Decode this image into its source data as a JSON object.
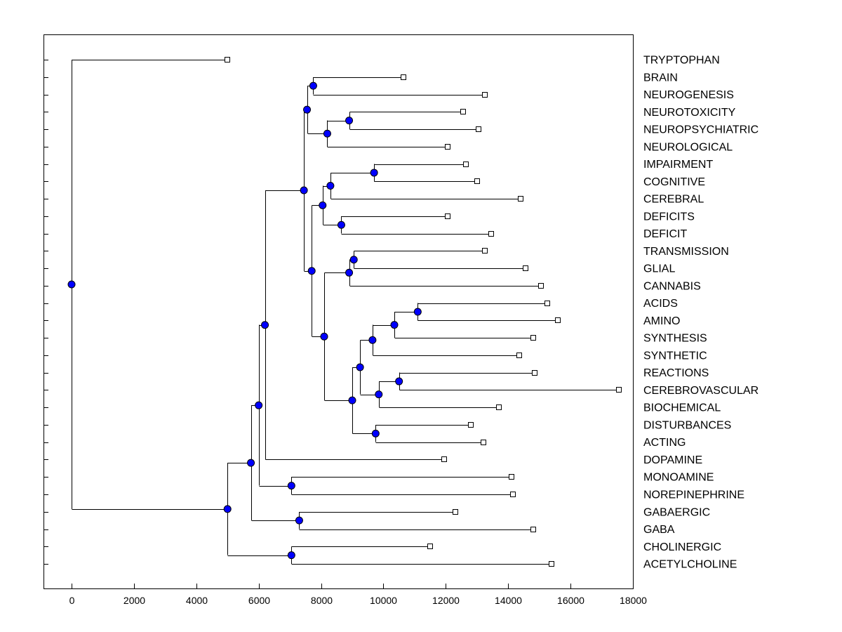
{
  "chart_data": {
    "type": "dendrogram",
    "title": "",
    "xlabel": "",
    "ylabel": "",
    "xlim": [
      -900,
      18000
    ],
    "x_ticks": [
      0,
      2000,
      4000,
      6000,
      8000,
      10000,
      12000,
      14000,
      16000,
      18000
    ],
    "x_tick_labels": [
      "0",
      "2000",
      "4000",
      "6000",
      "8000",
      "10000",
      "12000",
      "14000",
      "16000",
      "18000"
    ],
    "grid": false,
    "leaves": [
      {
        "label": "TRYPTOPHAN",
        "value": 5000
      },
      {
        "label": "BRAIN",
        "value": 10650
      },
      {
        "label": "NEUROGENESIS",
        "value": 13250
      },
      {
        "label": "NEUROTOXICITY",
        "value": 12550
      },
      {
        "label": "NEUROPSYCHIATRIC",
        "value": 13050
      },
      {
        "label": "NEUROLOGICAL",
        "value": 12050
      },
      {
        "label": "IMPAIRMENT",
        "value": 12650
      },
      {
        "label": "COGNITIVE",
        "value": 13000
      },
      {
        "label": "CEREBRAL",
        "value": 14400
      },
      {
        "label": "DEFICITS",
        "value": 12050
      },
      {
        "label": "DEFICIT",
        "value": 13450
      },
      {
        "label": "TRANSMISSION",
        "value": 13250
      },
      {
        "label": "GLIAL",
        "value": 14550
      },
      {
        "label": "CANNABIS",
        "value": 15050
      },
      {
        "label": "ACIDS",
        "value": 15250
      },
      {
        "label": "AMINO",
        "value": 15600
      },
      {
        "label": "SYNTHESIS",
        "value": 14800
      },
      {
        "label": "SYNTHETIC",
        "value": 14350
      },
      {
        "label": "REACTIONS",
        "value": 14850
      },
      {
        "label": "CEREBROVASCULAR",
        "value": 17550
      },
      {
        "label": "BIOCHEMICAL",
        "value": 13700
      },
      {
        "label": "DISTURBANCES",
        "value": 12800
      },
      {
        "label": "ACTING",
        "value": 13200
      },
      {
        "label": "DOPAMINE",
        "value": 11950
      },
      {
        "label": "MONOAMINE",
        "value": 14100
      },
      {
        "label": "NOREPINEPHRINE",
        "value": 14150
      },
      {
        "label": "GABAERGIC",
        "value": 12300
      },
      {
        "label": "GABA",
        "value": 14800
      },
      {
        "label": "CHOLINERGIC",
        "value": 11500
      },
      {
        "label": "ACETYLCHOLINE",
        "value": 15400
      }
    ],
    "nodes": [
      {
        "id": "n_brain",
        "value": 7750,
        "children": [
          "L1",
          "L2"
        ]
      },
      {
        "id": "n_ntox",
        "value": 8900,
        "children": [
          "L3",
          "L4"
        ]
      },
      {
        "id": "n_neuro3",
        "value": 8200,
        "children": [
          "n_ntox",
          "L5"
        ]
      },
      {
        "id": "n_neurogrp",
        "value": 7550,
        "children": [
          "n_brain",
          "n_neuro3"
        ]
      },
      {
        "id": "n_impair",
        "value": 9700,
        "children": [
          "L6",
          "L7"
        ]
      },
      {
        "id": "n_cereb",
        "value": 8300,
        "children": [
          "n_impair",
          "L8"
        ]
      },
      {
        "id": "n_defic",
        "value": 8650,
        "children": [
          "L9",
          "L10"
        ]
      },
      {
        "id": "n_cogdef",
        "value": 8050,
        "children": [
          "n_cereb",
          "n_defic"
        ]
      },
      {
        "id": "n_trans",
        "value": 9050,
        "children": [
          "L11",
          "L12"
        ]
      },
      {
        "id": "n_cannab",
        "value": 8900,
        "children": [
          "n_trans",
          "L13"
        ]
      },
      {
        "id": "n_acids",
        "value": 11100,
        "children": [
          "L14",
          "L15"
        ]
      },
      {
        "id": "n_synth",
        "value": 10350,
        "children": [
          "n_acids",
          "L16"
        ]
      },
      {
        "id": "n_synth2",
        "value": 9650,
        "children": [
          "n_synth",
          "L17"
        ]
      },
      {
        "id": "n_react",
        "value": 10500,
        "children": [
          "L18",
          "L19"
        ]
      },
      {
        "id": "n_biochem",
        "value": 9850,
        "children": [
          "n_react",
          "L20"
        ]
      },
      {
        "id": "n_chem",
        "value": 9250,
        "children": [
          "n_synth2",
          "n_biochem"
        ]
      },
      {
        "id": "n_dist",
        "value": 9750,
        "children": [
          "L21",
          "L22"
        ]
      },
      {
        "id": "n_chem2",
        "value": 9000,
        "children": [
          "n_chem",
          "n_dist"
        ]
      },
      {
        "id": "n_mid",
        "value": 8100,
        "children": [
          "n_cannab",
          "n_chem2"
        ]
      },
      {
        "id": "n_midgrp",
        "value": 7700,
        "children": [
          "n_cogdef",
          "n_mid"
        ]
      },
      {
        "id": "n_big",
        "value": 7450,
        "children": [
          "n_neurogrp",
          "n_midgrp"
        ]
      },
      {
        "id": "n_dopa",
        "value": 6200,
        "children": [
          "n_big",
          "L23"
        ]
      },
      {
        "id": "n_mono",
        "value": 7050,
        "children": [
          "L24",
          "L25"
        ]
      },
      {
        "id": "n_catechol",
        "value": 6000,
        "children": [
          "n_dopa",
          "n_mono"
        ]
      },
      {
        "id": "n_gaba",
        "value": 7300,
        "children": [
          "L26",
          "L27"
        ]
      },
      {
        "id": "n_neurotrans",
        "value": 5750,
        "children": [
          "n_catechol",
          "n_gaba"
        ]
      },
      {
        "id": "n_chol",
        "value": 7050,
        "children": [
          "L28",
          "L29"
        ]
      },
      {
        "id": "n_neurochem",
        "value": 5000,
        "children": [
          "n_neurotrans",
          "n_chol"
        ]
      },
      {
        "id": "n_root",
        "value": 0,
        "children": [
          "L0",
          "n_neurochem"
        ]
      }
    ]
  }
}
